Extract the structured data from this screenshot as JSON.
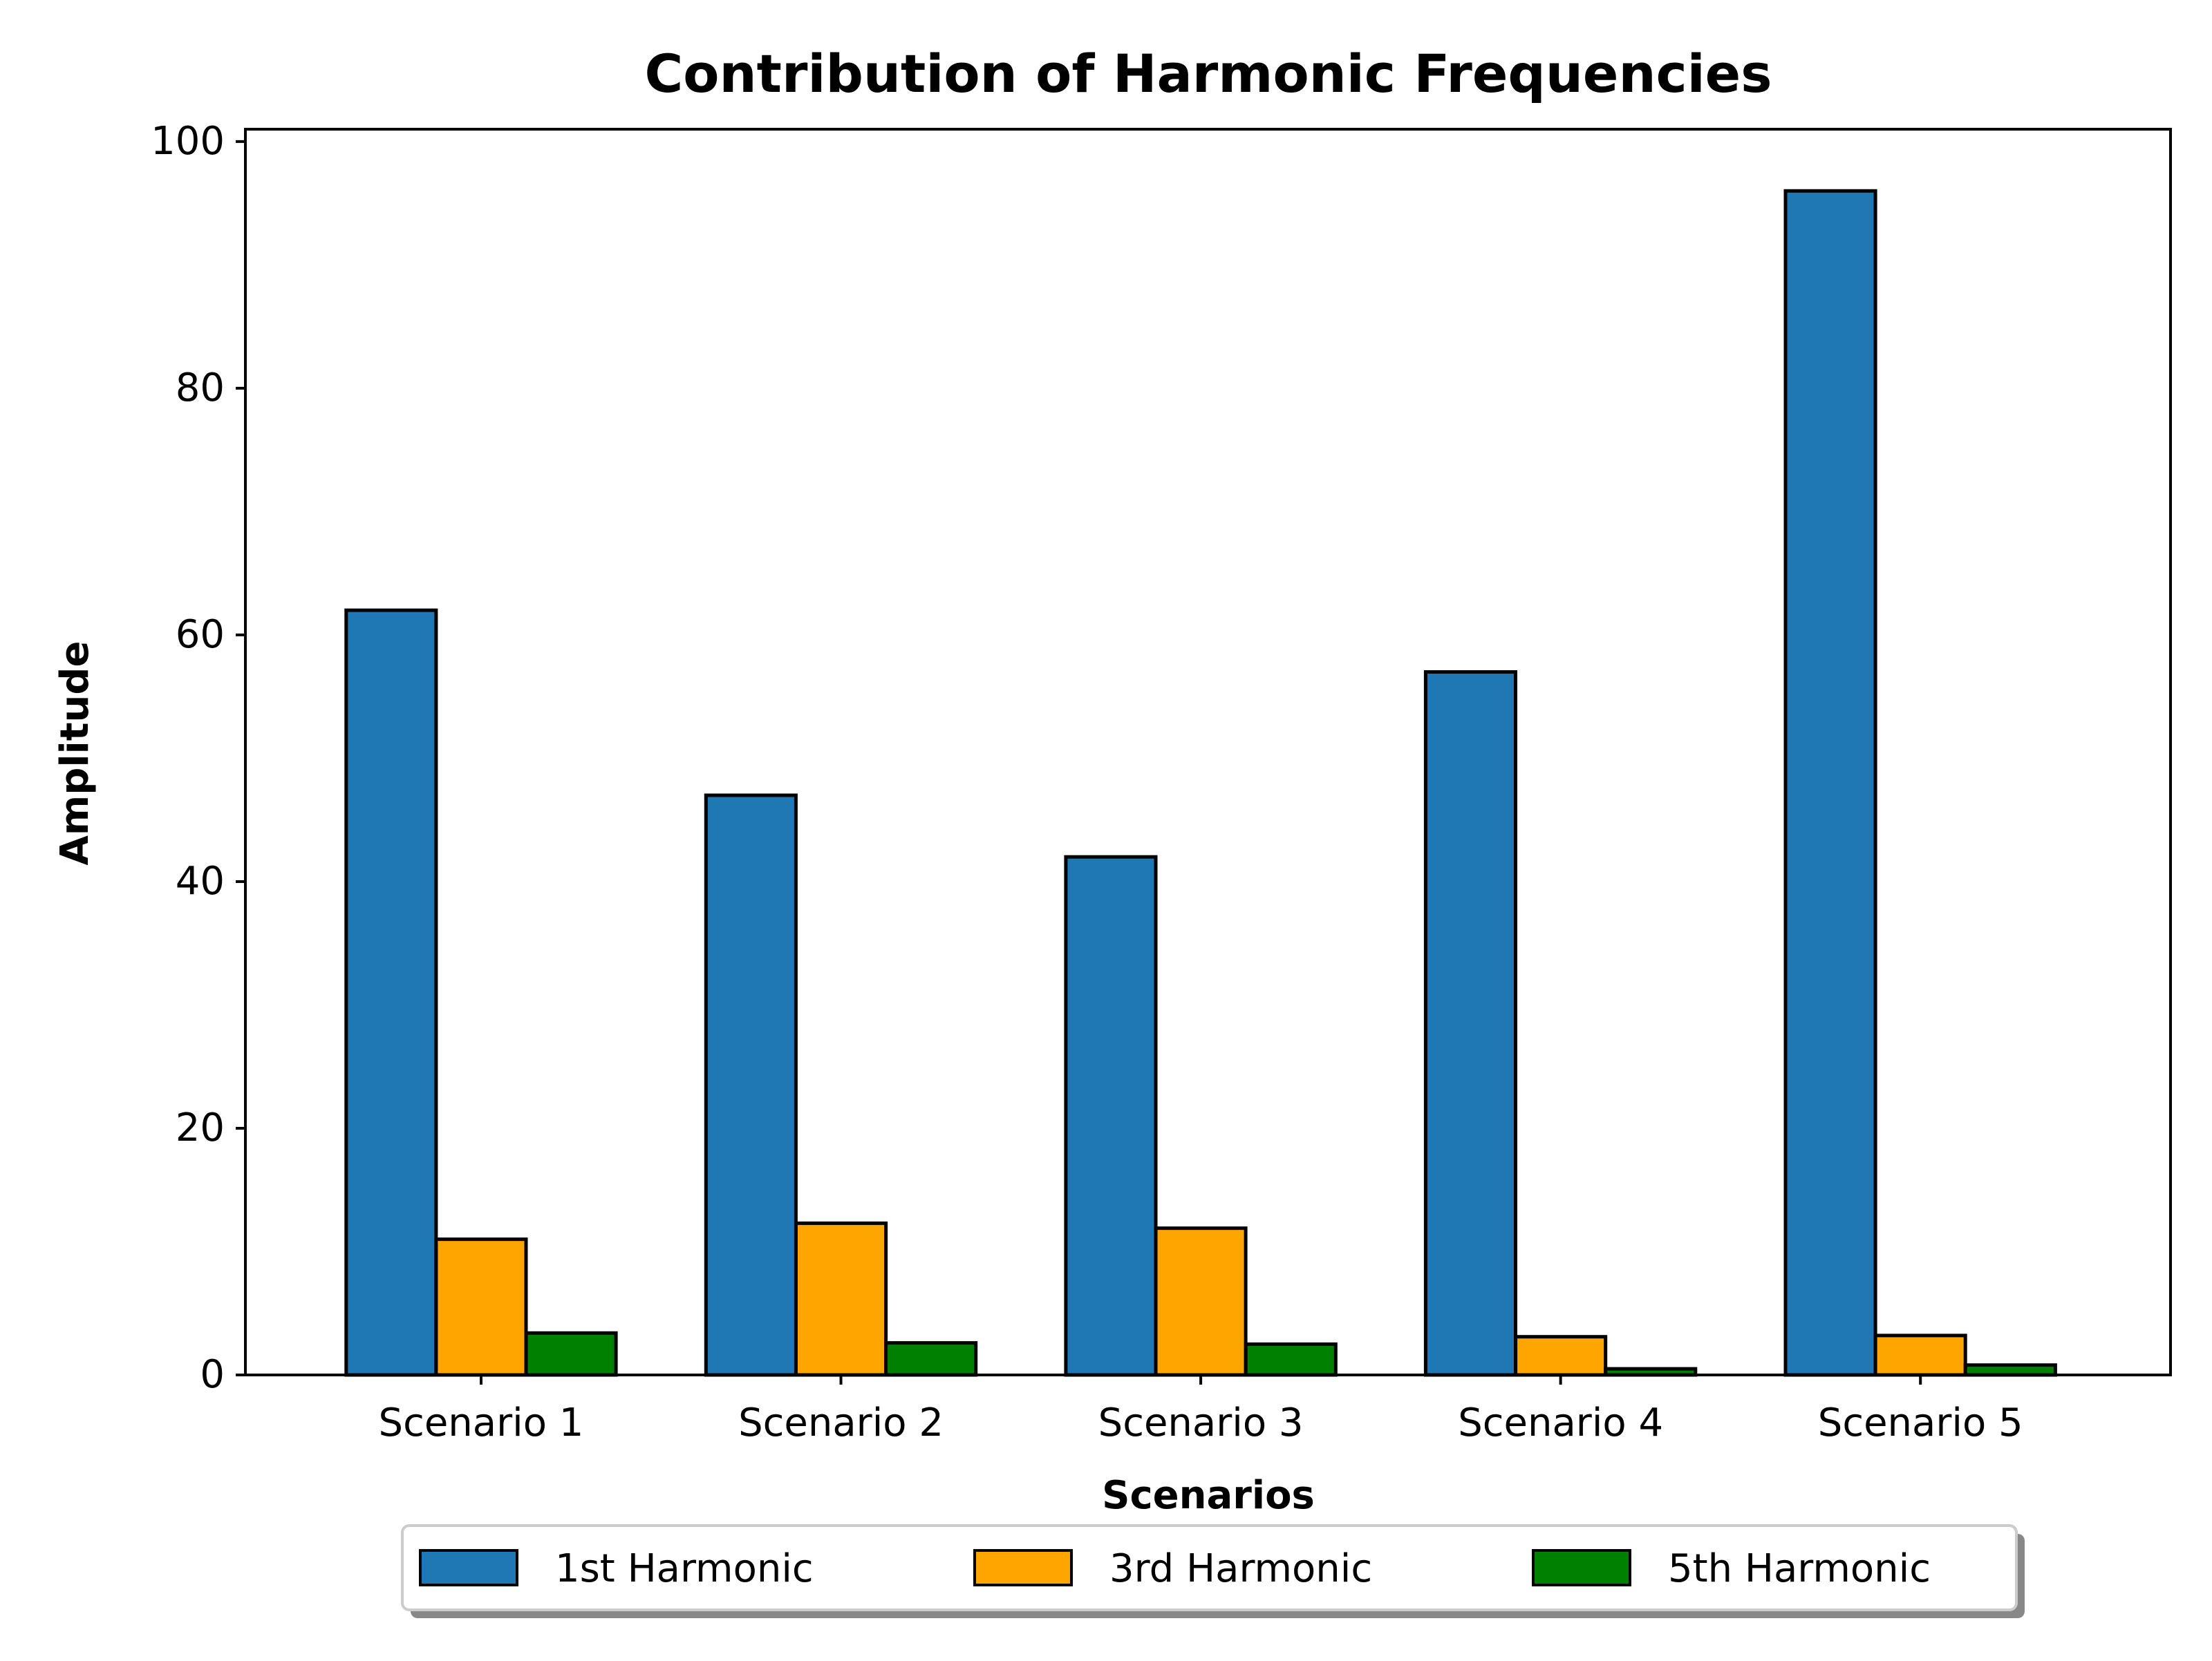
{
  "chart_data": {
    "type": "bar",
    "title": "Contribution of Harmonic Frequencies",
    "xlabel": "Scenarios",
    "ylabel": "Amplitude",
    "categories": [
      "Scenario 1",
      "Scenario 2",
      "Scenario 3",
      "Scenario 4",
      "Scenario 5"
    ],
    "series": [
      {
        "name": "1st Harmonic",
        "color": "#1f77b4",
        "values": [
          62,
          47,
          42,
          57,
          96
        ]
      },
      {
        "name": "3rd Harmonic",
        "color": "#ffa500",
        "values": [
          11.0,
          12.3,
          11.9,
          3.1,
          3.2
        ]
      },
      {
        "name": "5th Harmonic",
        "color": "#008000",
        "values": [
          3.4,
          2.6,
          2.5,
          0.5,
          0.8
        ]
      }
    ],
    "ylim": [
      0,
      101
    ],
    "yticks": [
      0,
      20,
      40,
      60,
      80,
      100
    ],
    "grid": false,
    "legend_position": "bottom-center"
  }
}
